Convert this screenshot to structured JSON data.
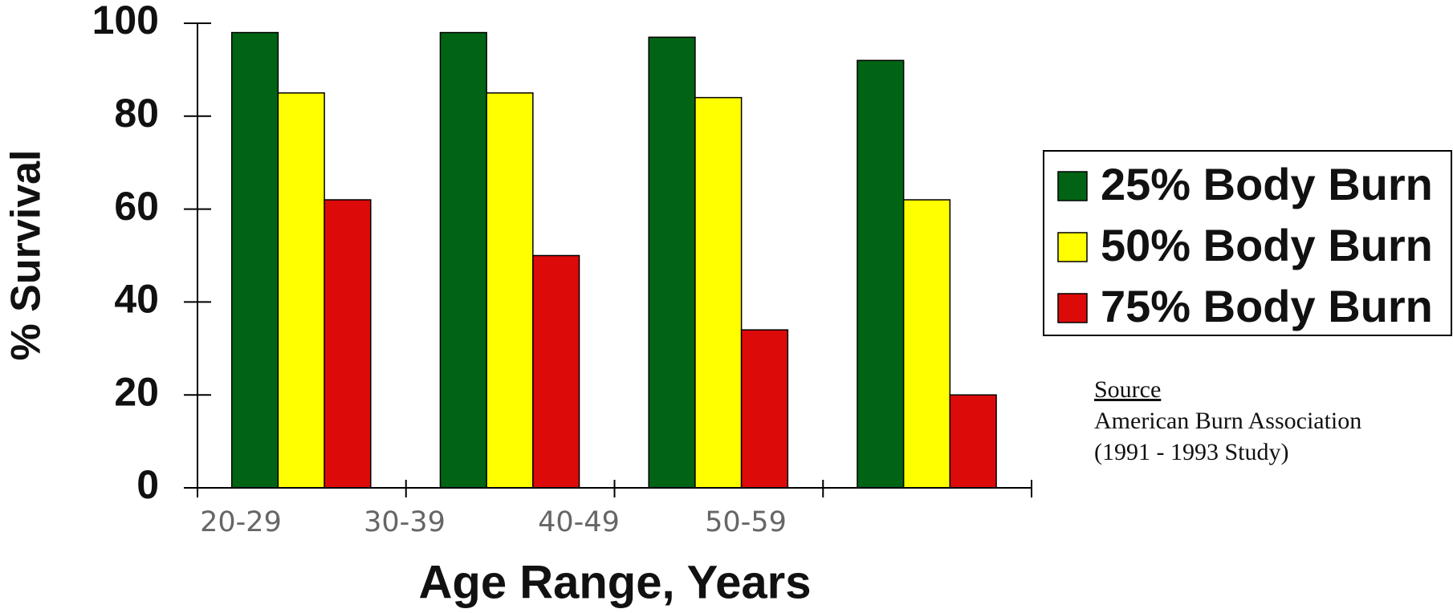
{
  "chart_data": {
    "type": "bar",
    "xlabel": "Age Range, Years",
    "ylabel": "% Survival",
    "categories": [
      "20-29",
      "30-39",
      "40-49",
      "50-59"
    ],
    "series": [
      {
        "name": "25% Body Burn",
        "color": "#006414",
        "values": [
          98,
          98,
          97,
          92
        ]
      },
      {
        "name": "50% Body Burn",
        "color": "#ffff00",
        "values": [
          85,
          85,
          84,
          62
        ]
      },
      {
        "name": "75% Body Burn",
        "color": "#dd0a0a",
        "values": [
          62,
          50,
          34,
          20
        ]
      }
    ],
    "ylim": [
      0,
      100
    ],
    "yticks": [
      0,
      20,
      40,
      60,
      80,
      100
    ],
    "grid": false,
    "legend": "right",
    "annotations": [
      "Source",
      "American Burn Association",
      "(1991 - 1993 Study)"
    ]
  }
}
